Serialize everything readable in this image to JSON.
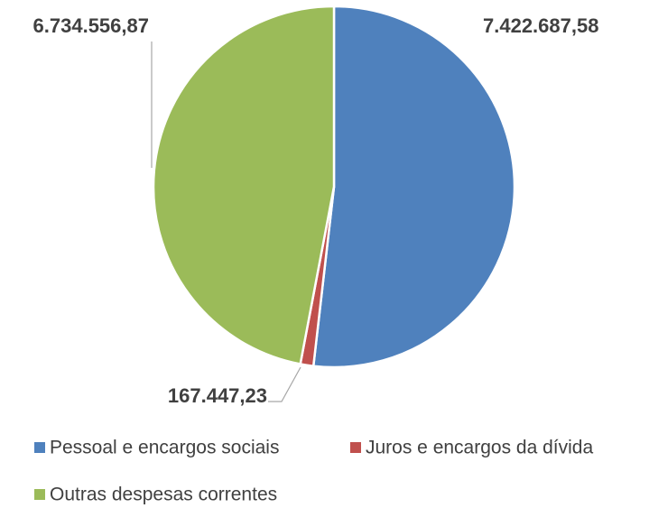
{
  "chart_data": {
    "type": "pie",
    "categories": [
      "Pessoal e encargos sociais",
      "Juros e encargos da dívida",
      "Outras despesas correntes"
    ],
    "values": [
      7422687.58,
      167447.23,
      6734556.87
    ],
    "value_labels": [
      "7.422.687,58",
      "167.447,23",
      "6.734.556,87"
    ],
    "colors": [
      "#4f81bd",
      "#c0504d",
      "#9bbb59"
    ],
    "legend": "bottom"
  }
}
